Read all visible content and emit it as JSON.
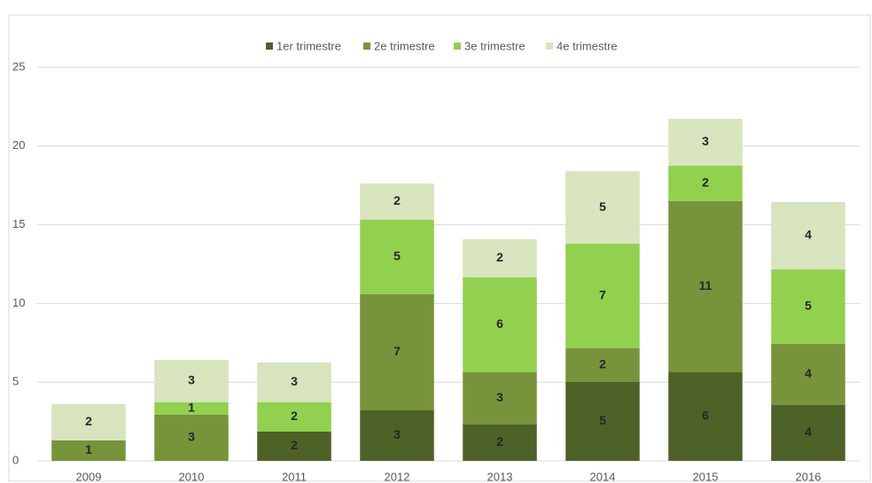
{
  "chart_data": {
    "type": "stacked-bar",
    "categories": [
      "2009",
      "2010",
      "2011",
      "2012",
      "2013",
      "2014",
      "2015",
      "2016"
    ],
    "series": [
      {
        "name": "1er trimestre",
        "color": "#4e6127",
        "values": [
          0,
          0,
          1.86,
          3.21,
          2.31,
          5.01,
          5.63,
          3.55
        ],
        "value_labels": [
          null,
          null,
          "2",
          "3",
          "2",
          "5",
          "6",
          "4"
        ]
      },
      {
        "name": "2e trimestre",
        "color": "#77933c",
        "values": [
          1.3,
          2.93,
          0,
          7.38,
          3.32,
          2.14,
          10.87,
          3.88
        ],
        "value_labels": [
          "1",
          "3",
          null,
          "7",
          "3",
          "2",
          "11",
          "4"
        ]
      },
      {
        "name": "3e trimestre",
        "color": "#92d050",
        "values": [
          0,
          0.79,
          1.86,
          4.73,
          6.03,
          6.65,
          2.25,
          4.73
        ],
        "value_labels": [
          null,
          "1",
          "2",
          "5",
          "6",
          "7",
          "2",
          "5"
        ]
      },
      {
        "name": "4e trimestre",
        "color": "#d7e4bd",
        "values": [
          2.3,
          2.7,
          2.53,
          2.3,
          2.42,
          4.6,
          2.98,
          4.28
        ],
        "value_labels": [
          "2",
          "3",
          "3",
          "2",
          "2",
          "5",
          "3",
          "4"
        ]
      }
    ],
    "ylim": [
      0,
      25
    ],
    "yticks": [
      0,
      5,
      10,
      15,
      20,
      25
    ],
    "grid": true,
    "legend": "top"
  }
}
